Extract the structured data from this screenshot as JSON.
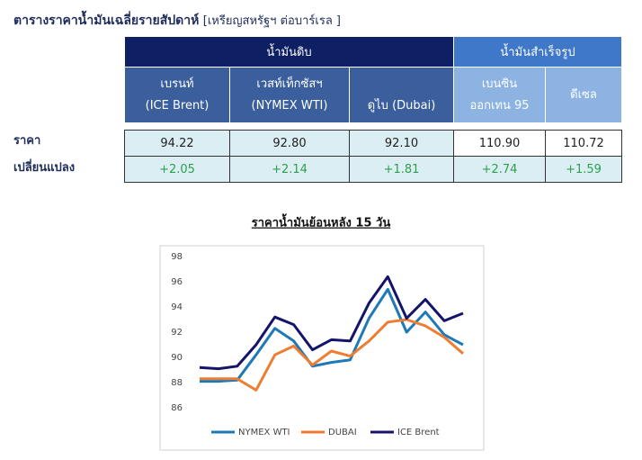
{
  "header": {
    "title": "ตารางราคาน้ำมันเฉลี่ยรายสัปดาห์",
    "unit": "[เหรียญสหรัฐฯ ต่อบาร์เรล ]"
  },
  "table": {
    "groups": [
      "น้ำมันดิบ",
      "น้ำมันสำเร็จรูป"
    ],
    "columns": [
      [
        "เบรนท์",
        "(ICE Brent)"
      ],
      [
        "เวสท์เท็กซัสฯ",
        "(NYMEX WTI)"
      ],
      [
        "ดูไบ (Dubai)"
      ],
      [
        "เบนซิน",
        "ออกเทน  95"
      ],
      [
        "ดีเซล"
      ]
    ],
    "rows": [
      {
        "label": "ราคา",
        "cells": [
          "94.22",
          "92.80",
          "92.10",
          "110.90",
          "110.72"
        ]
      },
      {
        "label": "เปลี่ยนแปลง",
        "cells": [
          "+2.05",
          "+2.14",
          "+1.81",
          "+2.74",
          "+1.59"
        ]
      }
    ]
  },
  "chart_data": {
    "type": "line",
    "title": "ราคาน้ำมันย้อนหลัง 15 วัน",
    "categories": [
      null,
      null,
      null,
      null,
      null,
      null,
      null,
      null,
      null,
      null,
      null,
      null,
      null,
      null,
      null
    ],
    "series": [
      {
        "name": "NYMEX WTI",
        "color": "#1f78b8",
        "values": [
          88.1,
          88.1,
          88.2,
          90.2,
          92.3,
          91.3,
          89.3,
          89.6,
          89.8,
          93.1,
          95.4,
          92.0,
          93.6,
          91.8,
          91.0
        ]
      },
      {
        "name": "DUBAI",
        "color": "#ed7d31",
        "values": [
          88.3,
          88.3,
          88.3,
          87.4,
          90.2,
          90.9,
          89.4,
          90.5,
          90.1,
          91.3,
          92.8,
          93.0,
          92.5,
          91.6,
          90.3
        ]
      },
      {
        "name": "ICE Brent",
        "color": "#14146a",
        "values": [
          89.2,
          89.1,
          89.3,
          91.0,
          93.2,
          92.6,
          90.6,
          91.4,
          91.3,
          94.3,
          96.4,
          93.1,
          94.6,
          92.9,
          93.5
        ]
      }
    ],
    "ylim": [
      85,
      98
    ],
    "yticks": [
      86,
      88,
      90,
      92,
      94,
      96,
      98
    ],
    "grid": false,
    "legend": "bottom"
  }
}
